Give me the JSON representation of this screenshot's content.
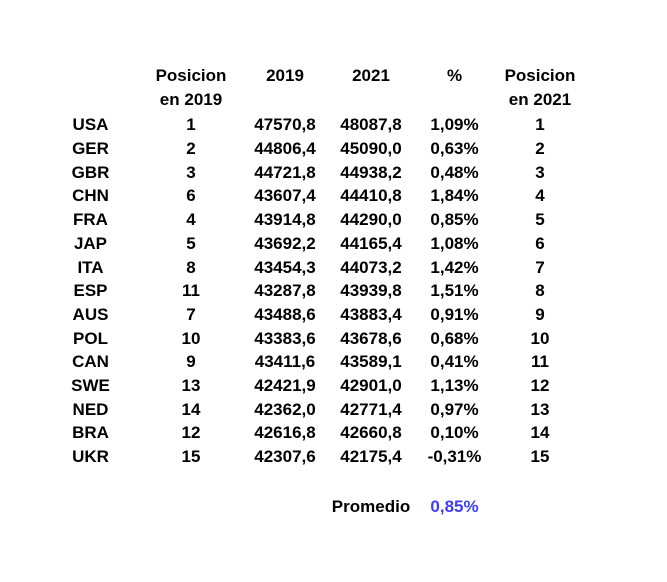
{
  "page": {
    "background": "#ffffff",
    "description": "Country ranking table comparing 2019 and 2021 values with percent change"
  },
  "header": {
    "pos2019_line1": "Posicion",
    "pos2019_line2": "en 2019",
    "year2019": "2019",
    "year2021": "2021",
    "pct": "%",
    "pos2021_line1": "Posicion",
    "pos2021_line2": "en 2021"
  },
  "chart_data": {
    "type": "table",
    "title": "",
    "columns": [
      "",
      "Posicion en 2019",
      "2019",
      "2021",
      "%",
      "Posicion en 2021"
    ],
    "rows": [
      [
        "USA",
        "1",
        "47570,8",
        "48087,8",
        "1,09%",
        "1"
      ],
      [
        "GER",
        "2",
        "44806,4",
        "45090,0",
        "0,63%",
        "2"
      ],
      [
        "GBR",
        "3",
        "44721,8",
        "44938,2",
        "0,48%",
        "3"
      ],
      [
        "CHN",
        "6",
        "43607,4",
        "44410,8",
        "1,84%",
        "4"
      ],
      [
        "FRA",
        "4",
        "43914,8",
        "44290,0",
        "0,85%",
        "5"
      ],
      [
        "JAP",
        "5",
        "43692,2",
        "44165,4",
        "1,08%",
        "6"
      ],
      [
        "ITA",
        "8",
        "43454,3",
        "44073,2",
        "1,42%",
        "7"
      ],
      [
        "ESP",
        "11",
        "43287,8",
        "43939,8",
        "1,51%",
        "8"
      ],
      [
        "AUS",
        "7",
        "43488,6",
        "43883,4",
        "0,91%",
        "9"
      ],
      [
        "POL",
        "10",
        "43383,6",
        "43678,6",
        "0,68%",
        "10"
      ],
      [
        "CAN",
        "9",
        "43411,6",
        "43589,1",
        "0,41%",
        "11"
      ],
      [
        "SWE",
        "13",
        "42421,9",
        "42901,0",
        "1,13%",
        "12"
      ],
      [
        "NED",
        "14",
        "42362,0",
        "42771,4",
        "0,97%",
        "13"
      ],
      [
        "BRA",
        "12",
        "42616,8",
        "42660,8",
        "0,10%",
        "14"
      ],
      [
        "UKR",
        "15",
        "42307,6",
        "42175,4",
        "-0,31%",
        "15"
      ]
    ],
    "summary": {
      "label": "Promedio",
      "value": "0,85%"
    }
  },
  "colors": {
    "text": "#000000",
    "summary_value": "#3d3dfa",
    "background": "#ffffff"
  }
}
